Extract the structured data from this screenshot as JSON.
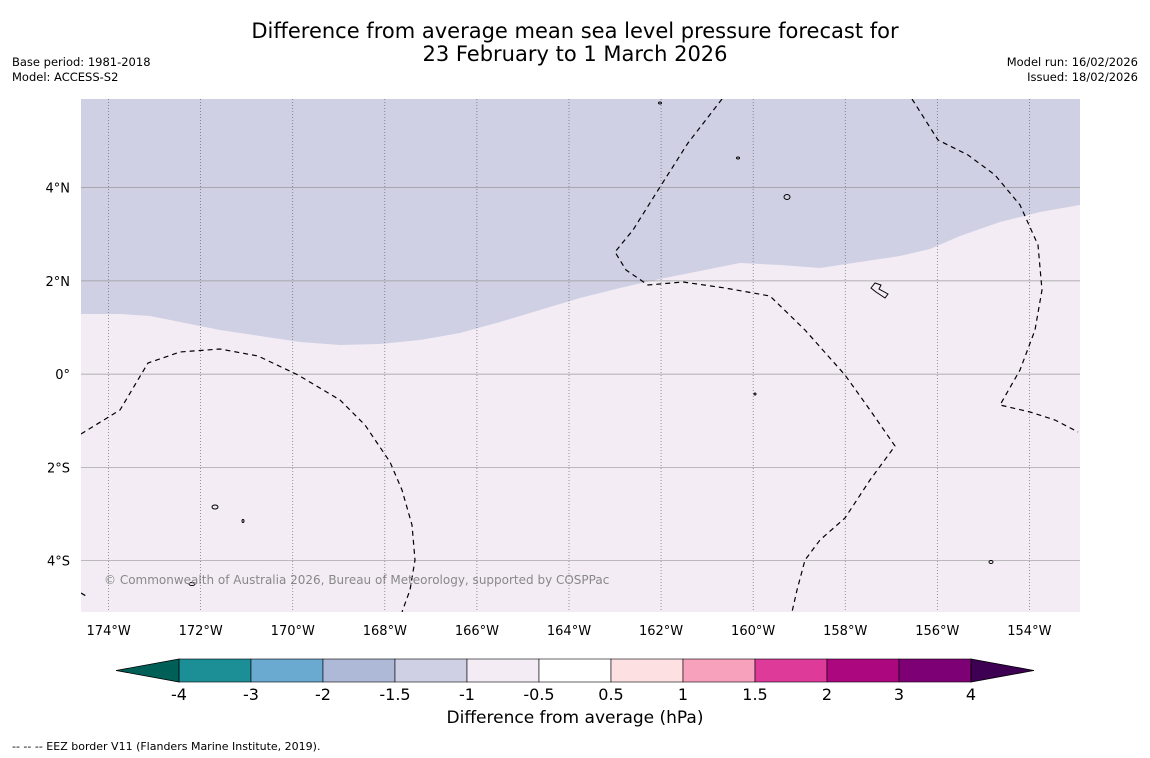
{
  "title": {
    "line1": "Difference from average mean sea level pressure forecast for",
    "line2": "23 February to 1 March 2026"
  },
  "meta_left": {
    "base_period": "Base period: 1981-2018",
    "model": "Model: ACCESS-S2"
  },
  "meta_right": {
    "model_run": "Model run: 16/02/2026",
    "issued": "Issued: 18/02/2026"
  },
  "map": {
    "lon_range": [
      -174.6,
      -152.9
    ],
    "lat_range": [
      -5.1,
      5.9
    ],
    "lon_ticks": [
      {
        "value": -174,
        "label": "174°W"
      },
      {
        "value": -172,
        "label": "172°W"
      },
      {
        "value": -170,
        "label": "170°W"
      },
      {
        "value": -168,
        "label": "168°W"
      },
      {
        "value": -166,
        "label": "166°W"
      },
      {
        "value": -164,
        "label": "164°W"
      },
      {
        "value": -162,
        "label": "162°W"
      },
      {
        "value": -160,
        "label": "160°W"
      },
      {
        "value": -158,
        "label": "158°W"
      },
      {
        "value": -156,
        "label": "156°W"
      },
      {
        "value": -154,
        "label": "154°W"
      }
    ],
    "lat_ticks": [
      {
        "value": 4,
        "label": "4°N"
      },
      {
        "value": 2,
        "label": "2°N"
      },
      {
        "value": 0,
        "label": "0°"
      },
      {
        "value": -2,
        "label": "2°S"
      },
      {
        "value": -4,
        "label": "4°S"
      }
    ],
    "fill_regions": [
      {
        "category": "-1.5 to -1 hPa",
        "color": "#d0d0e4",
        "note": "northern part of the domain"
      },
      {
        "category": "-1 to -0.5 hPa",
        "color": "#f3ecf5",
        "note": "southern part of the domain"
      }
    ],
    "copyright": "© Commonwealth of Australia 2026, Bureau of Meteorology, supported by COSPPac"
  },
  "colorbar": {
    "title": "Difference from average (hPa)",
    "low_extend_color": "#005f56",
    "high_extend_color": "#3d0052",
    "bins": [
      {
        "from": "-4",
        "to": "-3",
        "color": "#1b8f95"
      },
      {
        "from": "-3",
        "to": "-2",
        "color": "#6aa9d0"
      },
      {
        "from": "-2",
        "to": "-1.5",
        "color": "#adb9d6"
      },
      {
        "from": "-1.5",
        "to": "-1",
        "color": "#d0d0e4"
      },
      {
        "from": "-1",
        "to": "-0.5",
        "color": "#f3ecf5"
      },
      {
        "from": "-0.5",
        "to": "0.5",
        "color": "#ffffff"
      },
      {
        "from": "0.5",
        "to": "1",
        "color": "#fde0e2"
      },
      {
        "from": "1",
        "to": "1.5",
        "color": "#f7a1bd"
      },
      {
        "from": "1.5",
        "to": "2",
        "color": "#dd3a9a"
      },
      {
        "from": "2",
        "to": "3",
        "color": "#ad0780"
      },
      {
        "from": "3",
        "to": "4",
        "color": "#7e0075"
      }
    ],
    "tick_labels": [
      "-4",
      "-3",
      "-2",
      "-1.5",
      "-1",
      "-0.5",
      "0.5",
      "1",
      "1.5",
      "2",
      "3",
      "4"
    ]
  },
  "footnote": "--  --  -- EEZ border V11 (Flanders Marine Institute, 2019)."
}
